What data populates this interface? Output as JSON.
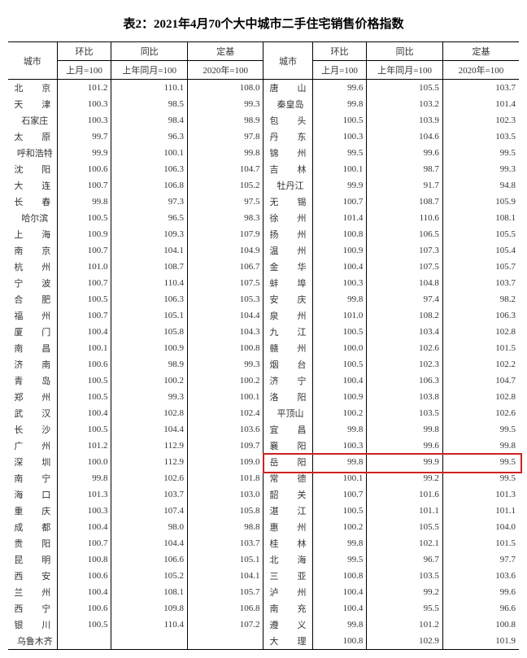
{
  "title": "表2：2021年4月70个大中城市二手住宅销售价格指数",
  "headers": {
    "city": "城市",
    "h1": "环比",
    "h2": "同比",
    "h3": "定基",
    "s1": "上月=100",
    "s2": "上年同月=100",
    "s3": "2020年=100"
  },
  "highlight_color": "#d02020",
  "rows": [
    {
      "c1": "北　京",
      "v1": "101.2",
      "v2": "110.1",
      "v3": "108.0",
      "c2": "唐　山",
      "v4": "99.6",
      "v5": "105.5",
      "v6": "103.7"
    },
    {
      "c1": "天　津",
      "v1": "100.3",
      "v2": "98.5",
      "v3": "99.3",
      "c2": "秦皇岛",
      "v4": "99.8",
      "v5": "103.2",
      "v6": "101.4"
    },
    {
      "c1": "石家庄",
      "v1": "100.3",
      "v2": "98.4",
      "v3": "98.9",
      "c2": "包　头",
      "v4": "100.5",
      "v5": "103.9",
      "v6": "102.3"
    },
    {
      "c1": "太　原",
      "v1": "99.7",
      "v2": "96.3",
      "v3": "97.8",
      "c2": "丹　东",
      "v4": "100.3",
      "v5": "104.6",
      "v6": "103.5"
    },
    {
      "c1": "呼和浩特",
      "v1": "99.9",
      "v2": "100.1",
      "v3": "99.8",
      "c2": "锦　州",
      "v4": "99.5",
      "v5": "99.6",
      "v6": "99.5"
    },
    {
      "c1": "沈　阳",
      "v1": "100.6",
      "v2": "106.3",
      "v3": "104.7",
      "c2": "吉　林",
      "v4": "100.1",
      "v5": "98.7",
      "v6": "99.3"
    },
    {
      "c1": "大　连",
      "v1": "100.7",
      "v2": "106.8",
      "v3": "105.2",
      "c2": "牡丹江",
      "v4": "99.9",
      "v5": "91.7",
      "v6": "94.8"
    },
    {
      "c1": "长　春",
      "v1": "99.8",
      "v2": "97.3",
      "v3": "97.5",
      "c2": "无　锡",
      "v4": "100.7",
      "v5": "108.7",
      "v6": "105.9"
    },
    {
      "c1": "哈尔滨",
      "v1": "100.5",
      "v2": "96.5",
      "v3": "98.3",
      "c2": "徐　州",
      "v4": "101.4",
      "v5": "110.6",
      "v6": "108.1"
    },
    {
      "c1": "上　海",
      "v1": "100.9",
      "v2": "109.3",
      "v3": "107.9",
      "c2": "扬　州",
      "v4": "100.8",
      "v5": "106.5",
      "v6": "105.5"
    },
    {
      "c1": "南　京",
      "v1": "100.7",
      "v2": "104.1",
      "v3": "104.9",
      "c2": "温　州",
      "v4": "100.9",
      "v5": "107.3",
      "v6": "105.4"
    },
    {
      "c1": "杭　州",
      "v1": "101.0",
      "v2": "108.7",
      "v3": "106.7",
      "c2": "金　华",
      "v4": "100.4",
      "v5": "107.5",
      "v6": "105.7"
    },
    {
      "c1": "宁　波",
      "v1": "100.7",
      "v2": "110.4",
      "v3": "107.5",
      "c2": "蚌　埠",
      "v4": "100.3",
      "v5": "104.8",
      "v6": "103.7"
    },
    {
      "c1": "合　肥",
      "v1": "100.5",
      "v2": "106.3",
      "v3": "105.3",
      "c2": "安　庆",
      "v4": "99.8",
      "v5": "97.4",
      "v6": "98.2"
    },
    {
      "c1": "福　州",
      "v1": "100.7",
      "v2": "105.1",
      "v3": "104.4",
      "c2": "泉　州",
      "v4": "101.0",
      "v5": "108.2",
      "v6": "106.3"
    },
    {
      "c1": "厦　门",
      "v1": "100.4",
      "v2": "105.8",
      "v3": "104.3",
      "c2": "九　江",
      "v4": "100.5",
      "v5": "103.4",
      "v6": "102.8"
    },
    {
      "c1": "南　昌",
      "v1": "100.1",
      "v2": "100.9",
      "v3": "100.8",
      "c2": "赣　州",
      "v4": "100.0",
      "v5": "102.6",
      "v6": "101.5"
    },
    {
      "c1": "济　南",
      "v1": "100.6",
      "v2": "98.9",
      "v3": "99.3",
      "c2": "烟　台",
      "v4": "100.5",
      "v5": "102.3",
      "v6": "102.2"
    },
    {
      "c1": "青　岛",
      "v1": "100.5",
      "v2": "100.2",
      "v3": "100.2",
      "c2": "济　宁",
      "v4": "100.4",
      "v5": "106.3",
      "v6": "104.7"
    },
    {
      "c1": "郑　州",
      "v1": "100.5",
      "v2": "99.3",
      "v3": "100.1",
      "c2": "洛　阳",
      "v4": "100.9",
      "v5": "103.8",
      "v6": "102.8"
    },
    {
      "c1": "武　汉",
      "v1": "100.4",
      "v2": "102.8",
      "v3": "102.4",
      "c2": "平顶山",
      "v4": "100.2",
      "v5": "103.5",
      "v6": "102.6"
    },
    {
      "c1": "长　沙",
      "v1": "100.5",
      "v2": "104.4",
      "v3": "103.6",
      "c2": "宜　昌",
      "v4": "99.8",
      "v5": "99.8",
      "v6": "99.5"
    },
    {
      "c1": "广　州",
      "v1": "101.2",
      "v2": "112.9",
      "v3": "109.7",
      "c2": "襄　阳",
      "v4": "100.3",
      "v5": "99.6",
      "v6": "99.8"
    },
    {
      "c1": "深　圳",
      "v1": "100.0",
      "v2": "112.9",
      "v3": "109.0",
      "c2": "岳　阳",
      "v4": "99.8",
      "v5": "99.9",
      "v6": "99.5",
      "hl": true
    },
    {
      "c1": "南　宁",
      "v1": "99.8",
      "v2": "102.6",
      "v3": "101.8",
      "c2": "常　德",
      "v4": "100.1",
      "v5": "99.2",
      "v6": "99.5"
    },
    {
      "c1": "海　口",
      "v1": "101.3",
      "v2": "103.7",
      "v3": "103.0",
      "c2": "韶　关",
      "v4": "100.7",
      "v5": "101.6",
      "v6": "101.3"
    },
    {
      "c1": "重　庆",
      "v1": "100.3",
      "v2": "107.4",
      "v3": "105.8",
      "c2": "湛　江",
      "v4": "100.5",
      "v5": "101.1",
      "v6": "101.1"
    },
    {
      "c1": "成　都",
      "v1": "100.4",
      "v2": "98.0",
      "v3": "98.8",
      "c2": "惠　州",
      "v4": "100.2",
      "v5": "105.5",
      "v6": "104.0"
    },
    {
      "c1": "贵　阳",
      "v1": "100.7",
      "v2": "104.4",
      "v3": "103.7",
      "c2": "桂　林",
      "v4": "99.8",
      "v5": "102.1",
      "v6": "101.5"
    },
    {
      "c1": "昆　明",
      "v1": "100.8",
      "v2": "106.6",
      "v3": "105.1",
      "c2": "北　海",
      "v4": "99.5",
      "v5": "96.7",
      "v6": "97.7"
    },
    {
      "c1": "西　安",
      "v1": "100.6",
      "v2": "105.2",
      "v3": "104.1",
      "c2": "三　亚",
      "v4": "100.8",
      "v5": "103.5",
      "v6": "103.6"
    },
    {
      "c1": "兰　州",
      "v1": "100.4",
      "v2": "108.1",
      "v3": "105.7",
      "c2": "泸　州",
      "v4": "100.4",
      "v5": "99.2",
      "v6": "99.6"
    },
    {
      "c1": "西　宁",
      "v1": "100.6",
      "v2": "109.8",
      "v3": "106.8",
      "c2": "南　充",
      "v4": "100.4",
      "v5": "95.5",
      "v6": "96.6"
    },
    {
      "c1": "银　川",
      "v1": "100.5",
      "v2": "110.4",
      "v3": "107.2",
      "c2": "遵　义",
      "v4": "99.8",
      "v5": "101.2",
      "v6": "100.8"
    },
    {
      "c1": "乌鲁木齐",
      "v1": "",
      "v2": "",
      "v3": "",
      "c2": "大　理",
      "v4": "100.8",
      "v5": "102.9",
      "v6": "101.9"
    }
  ]
}
